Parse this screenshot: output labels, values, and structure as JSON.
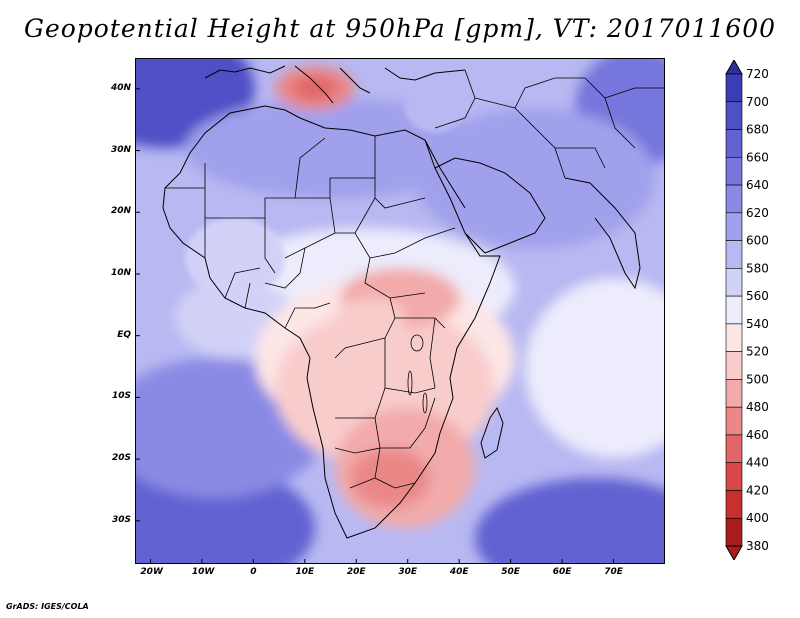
{
  "title": "Geopotential Height at 950hPa [gpm], VT: 2017011600",
  "credit": "GrADS: IGES/COLA",
  "map": {
    "lon_range": [
      -23,
      80
    ],
    "lat_range": [
      -37,
      45
    ],
    "lon_ticks": [
      {
        "value": -20,
        "label": "20W"
      },
      {
        "value": -10,
        "label": "10W"
      },
      {
        "value": 0,
        "label": "0"
      },
      {
        "value": 10,
        "label": "10E"
      },
      {
        "value": 20,
        "label": "20E"
      },
      {
        "value": 30,
        "label": "30E"
      },
      {
        "value": 40,
        "label": "40E"
      },
      {
        "value": 50,
        "label": "50E"
      },
      {
        "value": 60,
        "label": "60E"
      },
      {
        "value": 70,
        "label": "70E"
      }
    ],
    "lat_ticks": [
      {
        "value": 40,
        "label": "40N"
      },
      {
        "value": 30,
        "label": "30N"
      },
      {
        "value": 20,
        "label": "20N"
      },
      {
        "value": 10,
        "label": "10N"
      },
      {
        "value": 0,
        "label": "EQ"
      },
      {
        "value": -10,
        "label": "10S"
      },
      {
        "value": -20,
        "label": "20S"
      },
      {
        "value": -30,
        "label": "30S"
      }
    ]
  },
  "colorbar": {
    "levels": [
      720,
      700,
      680,
      660,
      640,
      620,
      600,
      580,
      560,
      540,
      520,
      500,
      480,
      460,
      440,
      420,
      400,
      380
    ],
    "colors": [
      "#2e2e9e",
      "#3c3cb4",
      "#4f4fc6",
      "#6262d2",
      "#7676dc",
      "#8a8ae4",
      "#a0a0ec",
      "#b8b8f2",
      "#d2d2f8",
      "#ececfc",
      "#fde6e6",
      "#f9cccc",
      "#f2aaaa",
      "#ea8888",
      "#e26666",
      "#d84848",
      "#c83030",
      "#a81c1c"
    ]
  },
  "fields": {
    "ocean_high": "#8a8ae4",
    "ocean_mid": "#b8b8f2",
    "land_low": "#f9cccc",
    "land_lower": "#ea8888"
  }
}
